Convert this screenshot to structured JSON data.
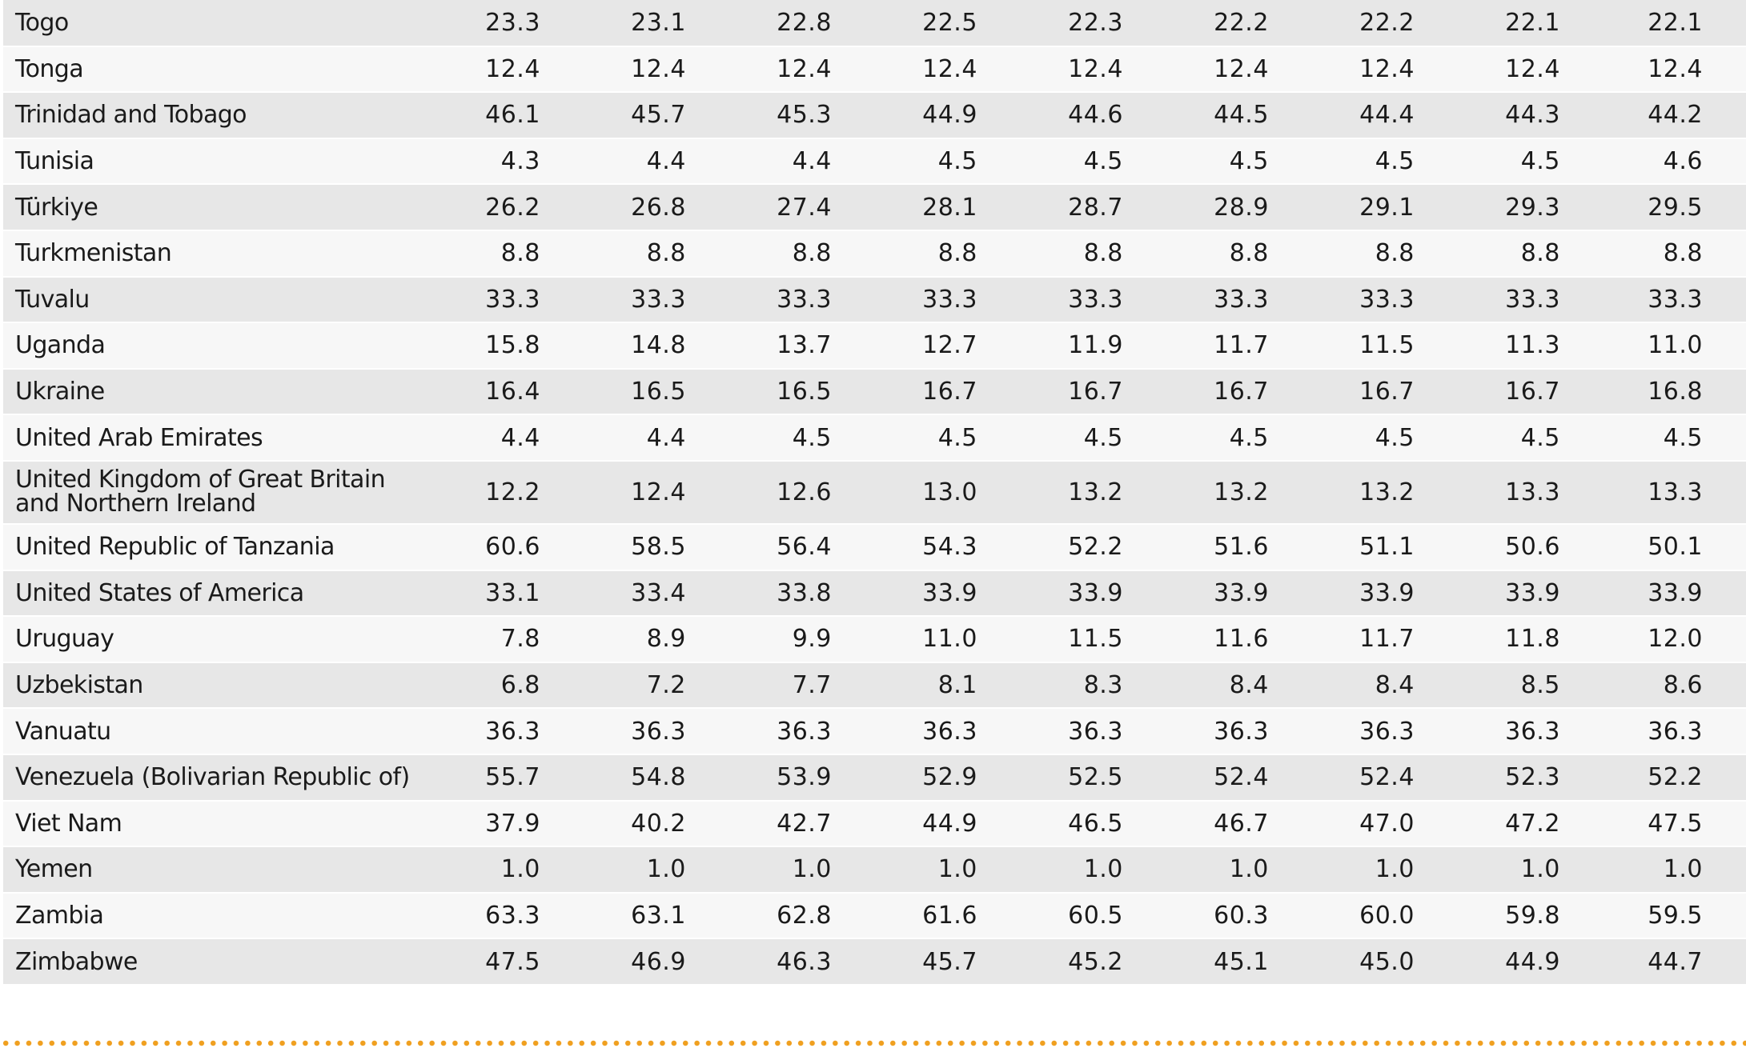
{
  "table": {
    "rows": [
      {
        "country": "Togo",
        "values": [
          "23.3",
          "23.1",
          "22.8",
          "22.5",
          "22.3",
          "22.2",
          "22.2",
          "22.1",
          "22.1"
        ]
      },
      {
        "country": "Tonga",
        "values": [
          "12.4",
          "12.4",
          "12.4",
          "12.4",
          "12.4",
          "12.4",
          "12.4",
          "12.4",
          "12.4"
        ]
      },
      {
        "country": "Trinidad and Tobago",
        "values": [
          "46.1",
          "45.7",
          "45.3",
          "44.9",
          "44.6",
          "44.5",
          "44.4",
          "44.3",
          "44.2"
        ]
      },
      {
        "country": "Tunisia",
        "values": [
          "4.3",
          "4.4",
          "4.4",
          "4.5",
          "4.5",
          "4.5",
          "4.5",
          "4.5",
          "4.6"
        ]
      },
      {
        "country": "Türkiye",
        "values": [
          "26.2",
          "26.8",
          "27.4",
          "28.1",
          "28.7",
          "28.9",
          "29.1",
          "29.3",
          "29.5"
        ]
      },
      {
        "country": "Turkmenistan",
        "values": [
          "8.8",
          "8.8",
          "8.8",
          "8.8",
          "8.8",
          "8.8",
          "8.8",
          "8.8",
          "8.8"
        ]
      },
      {
        "country": "Tuvalu",
        "values": [
          "33.3",
          "33.3",
          "33.3",
          "33.3",
          "33.3",
          "33.3",
          "33.3",
          "33.3",
          "33.3"
        ]
      },
      {
        "country": "Uganda",
        "values": [
          "15.8",
          "14.8",
          "13.7",
          "12.7",
          "11.9",
          "11.7",
          "11.5",
          "11.3",
          "11.0"
        ]
      },
      {
        "country": "Ukraine",
        "values": [
          "16.4",
          "16.5",
          "16.5",
          "16.7",
          "16.7",
          "16.7",
          "16.7",
          "16.7",
          "16.8"
        ]
      },
      {
        "country": "United Arab Emirates",
        "values": [
          "4.4",
          "4.4",
          "4.5",
          "4.5",
          "4.5",
          "4.5",
          "4.5",
          "4.5",
          "4.5"
        ]
      },
      {
        "country": "United Kingdom of Great Britain and Northern Ireland",
        "values": [
          "12.2",
          "12.4",
          "12.6",
          "13.0",
          "13.2",
          "13.2",
          "13.2",
          "13.3",
          "13.3"
        ]
      },
      {
        "country": "United Republic of Tanzania",
        "values": [
          "60.6",
          "58.5",
          "56.4",
          "54.3",
          "52.2",
          "51.6",
          "51.1",
          "50.6",
          "50.1"
        ]
      },
      {
        "country": "United States of America",
        "values": [
          "33.1",
          "33.4",
          "33.8",
          "33.9",
          "33.9",
          "33.9",
          "33.9",
          "33.9",
          "33.9"
        ]
      },
      {
        "country": "Uruguay",
        "values": [
          "7.8",
          "8.9",
          "9.9",
          "11.0",
          "11.5",
          "11.6",
          "11.7",
          "11.8",
          "12.0"
        ]
      },
      {
        "country": "Uzbekistan",
        "values": [
          "6.8",
          "7.2",
          "7.7",
          "8.1",
          "8.3",
          "8.4",
          "8.4",
          "8.5",
          "8.6"
        ]
      },
      {
        "country": "Vanuatu",
        "values": [
          "36.3",
          "36.3",
          "36.3",
          "36.3",
          "36.3",
          "36.3",
          "36.3",
          "36.3",
          "36.3"
        ]
      },
      {
        "country": "Venezuela (Bolivarian Republic of)",
        "values": [
          "55.7",
          "54.8",
          "53.9",
          "52.9",
          "52.5",
          "52.4",
          "52.4",
          "52.3",
          "52.2"
        ]
      },
      {
        "country": "Viet Nam",
        "values": [
          "37.9",
          "40.2",
          "42.7",
          "44.9",
          "46.5",
          "46.7",
          "47.0",
          "47.2",
          "47.5"
        ]
      },
      {
        "country": "Yemen",
        "values": [
          "1.0",
          "1.0",
          "1.0",
          "1.0",
          "1.0",
          "1.0",
          "1.0",
          "1.0",
          "1.0"
        ]
      },
      {
        "country": "Zambia",
        "values": [
          "63.3",
          "63.1",
          "62.8",
          "61.6",
          "60.5",
          "60.3",
          "60.0",
          "59.8",
          "59.5"
        ]
      },
      {
        "country": "Zimbabwe",
        "values": [
          "47.5",
          "46.9",
          "46.3",
          "45.7",
          "45.2",
          "45.1",
          "45.0",
          "44.9",
          "44.7"
        ]
      }
    ]
  },
  "colors": {
    "row_shade_dark": "#e7e7e7",
    "row_shade_light": "#f7f7f7",
    "footer_dots": "#f0a020"
  }
}
